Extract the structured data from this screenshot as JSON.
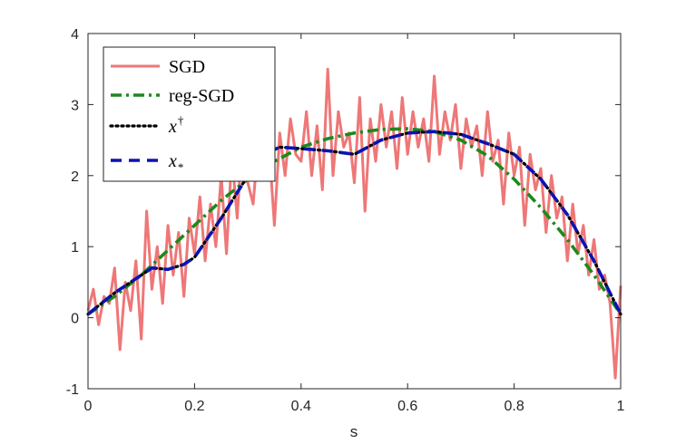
{
  "chart_data": {
    "type": "line",
    "xlabel": "s",
    "ylabel": "",
    "xlim": [
      0,
      1
    ],
    "ylim": [
      -1,
      4
    ],
    "x_ticks": [
      "0",
      "0.2",
      "0.4",
      "0.6",
      "0.8",
      "1"
    ],
    "y_ticks": [
      "-1",
      "0",
      "1",
      "2",
      "3",
      "4"
    ],
    "grid": false,
    "legend_position": "top-left",
    "series": [
      {
        "name": "SGD",
        "color": "#e84a4a",
        "style": "solid",
        "x": [
          0,
          0.01,
          0.02,
          0.03,
          0.04,
          0.05,
          0.06,
          0.07,
          0.08,
          0.09,
          0.1,
          0.11,
          0.12,
          0.13,
          0.14,
          0.15,
          0.16,
          0.17,
          0.18,
          0.19,
          0.2,
          0.21,
          0.22,
          0.23,
          0.24,
          0.25,
          0.26,
          0.27,
          0.28,
          0.29,
          0.3,
          0.31,
          0.32,
          0.33,
          0.34,
          0.35,
          0.36,
          0.37,
          0.38,
          0.39,
          0.4,
          0.41,
          0.42,
          0.43,
          0.44,
          0.45,
          0.46,
          0.47,
          0.48,
          0.49,
          0.5,
          0.51,
          0.52,
          0.53,
          0.54,
          0.55,
          0.56,
          0.57,
          0.58,
          0.59,
          0.6,
          0.61,
          0.62,
          0.63,
          0.64,
          0.65,
          0.66,
          0.67,
          0.68,
          0.69,
          0.7,
          0.71,
          0.72,
          0.73,
          0.74,
          0.75,
          0.76,
          0.77,
          0.78,
          0.79,
          0.8,
          0.81,
          0.82,
          0.83,
          0.84,
          0.85,
          0.86,
          0.87,
          0.88,
          0.89,
          0.9,
          0.91,
          0.92,
          0.93,
          0.94,
          0.95,
          0.96,
          0.97,
          0.98,
          0.99,
          1
        ],
        "y": [
          0.1,
          0.4,
          -0.1,
          0.3,
          0.2,
          0.7,
          -0.45,
          0.5,
          0.1,
          0.8,
          -0.3,
          1.5,
          0.4,
          1.0,
          0.2,
          1.3,
          0.6,
          1.2,
          0.3,
          1.4,
          0.9,
          1.7,
          0.8,
          1.6,
          1.0,
          2.0,
          0.9,
          2.3,
          1.4,
          2.6,
          1.9,
          1.6,
          2.5,
          2.1,
          2.4,
          1.3,
          2.6,
          2.0,
          2.8,
          2.3,
          2.2,
          2.9,
          2.0,
          2.7,
          1.8,
          3.5,
          2.0,
          2.9,
          2.4,
          2.6,
          1.9,
          3.1,
          1.5,
          2.8,
          2.2,
          3.0,
          2.4,
          2.9,
          2.1,
          3.1,
          2.3,
          2.9,
          2.4,
          2.8,
          2.2,
          3.4,
          2.3,
          2.9,
          2.5,
          3.0,
          2.1,
          2.8,
          2.4,
          2.7,
          2.0,
          2.9,
          2.2,
          2.5,
          1.6,
          2.6,
          2.0,
          2.4,
          1.3,
          2.3,
          1.8,
          2.1,
          1.2,
          2.0,
          1.4,
          1.7,
          0.8,
          1.6,
          0.9,
          1.3,
          0.6,
          1.1,
          0.4,
          0.6,
          0.2,
          -0.85,
          0.45
        ]
      },
      {
        "name": "reg-SGD",
        "color": "#1b8a1b",
        "style": "dash-dot",
        "x": [
          0,
          0.05,
          0.1,
          0.15,
          0.2,
          0.25,
          0.3,
          0.35,
          0.4,
          0.45,
          0.5,
          0.55,
          0.6,
          0.65,
          0.7,
          0.75,
          0.8,
          0.85,
          0.9,
          0.95,
          1
        ],
        "y": [
          0.05,
          0.3,
          0.6,
          0.95,
          1.3,
          1.65,
          1.95,
          2.2,
          2.4,
          2.52,
          2.6,
          2.65,
          2.66,
          2.62,
          2.5,
          2.28,
          1.95,
          1.55,
          1.1,
          0.6,
          0.05
        ]
      },
      {
        "name": "x^†",
        "color": "#000000",
        "style": "dotted",
        "x": [
          0,
          0.05,
          0.1,
          0.12,
          0.15,
          0.18,
          0.2,
          0.25,
          0.3,
          0.33,
          0.36,
          0.4,
          0.45,
          0.5,
          0.55,
          0.6,
          0.65,
          0.7,
          0.75,
          0.8,
          0.85,
          0.9,
          0.95,
          1
        ],
        "y": [
          0.05,
          0.35,
          0.6,
          0.7,
          0.68,
          0.75,
          0.85,
          1.4,
          2.0,
          2.3,
          2.4,
          2.38,
          2.35,
          2.3,
          2.5,
          2.6,
          2.62,
          2.58,
          2.45,
          2.3,
          1.95,
          1.45,
          0.8,
          0.05
        ]
      },
      {
        "name": "x_*",
        "color": "#0a14b4",
        "style": "dashed",
        "x": [
          0,
          0.05,
          0.1,
          0.12,
          0.15,
          0.18,
          0.2,
          0.25,
          0.3,
          0.33,
          0.36,
          0.4,
          0.45,
          0.5,
          0.55,
          0.6,
          0.65,
          0.7,
          0.75,
          0.8,
          0.85,
          0.9,
          0.95,
          1
        ],
        "y": [
          0.05,
          0.35,
          0.6,
          0.7,
          0.68,
          0.75,
          0.85,
          1.4,
          2.0,
          2.3,
          2.4,
          2.38,
          2.35,
          2.3,
          2.5,
          2.6,
          2.62,
          2.58,
          2.45,
          2.3,
          1.95,
          1.45,
          0.8,
          0.05
        ]
      }
    ]
  }
}
